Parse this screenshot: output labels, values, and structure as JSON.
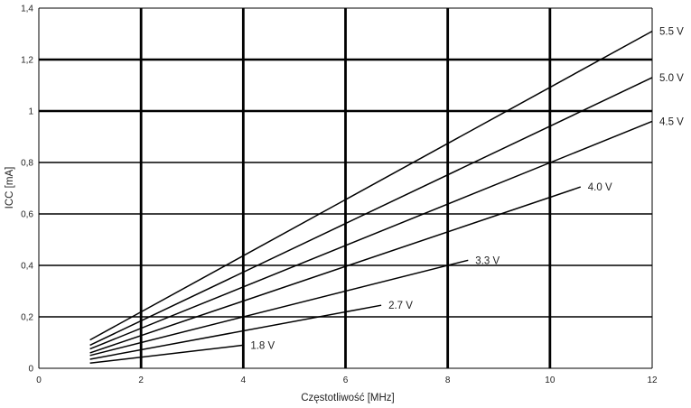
{
  "chart_data": {
    "type": "line",
    "title": "",
    "xlabel": "Częstotliwość [MHz]",
    "ylabel": "ICC [mA]",
    "xlim": [
      0,
      12
    ],
    "ylim": [
      0,
      1.4
    ],
    "x_ticks": [
      0,
      2,
      4,
      6,
      8,
      10,
      12
    ],
    "x_tick_labels": [
      "0",
      "2",
      "4",
      "6",
      "8",
      "10",
      "12"
    ],
    "y_ticks": [
      0,
      0.2,
      0.4,
      0.6,
      0.8,
      1.0,
      1.2,
      1.4
    ],
    "y_tick_labels": [
      "0",
      "0,2",
      "0,4",
      "0,6",
      "0,8",
      "1",
      "1,2",
      "1,4"
    ],
    "grid": true,
    "legend": "inline labels at line ends",
    "colors": {
      "line": "#000000",
      "grid": "#000000"
    },
    "series": [
      {
        "name": "1.8 V",
        "x": [
          1,
          4
        ],
        "y": [
          0.02,
          0.09
        ]
      },
      {
        "name": "2.7 V",
        "x": [
          1,
          6.7
        ],
        "y": [
          0.035,
          0.245
        ]
      },
      {
        "name": "3.3 V",
        "x": [
          1,
          8.4
        ],
        "y": [
          0.05,
          0.42
        ]
      },
      {
        "name": "4.0 V",
        "x": [
          1,
          10.6
        ],
        "y": [
          0.06,
          0.705
        ]
      },
      {
        "name": "4.5 V",
        "x": [
          1,
          12
        ],
        "y": [
          0.075,
          0.96
        ]
      },
      {
        "name": "5.0 V",
        "x": [
          1,
          12
        ],
        "y": [
          0.09,
          1.13
        ]
      },
      {
        "name": "5.5 V",
        "x": [
          1,
          12
        ],
        "y": [
          0.11,
          1.31
        ]
      }
    ]
  }
}
